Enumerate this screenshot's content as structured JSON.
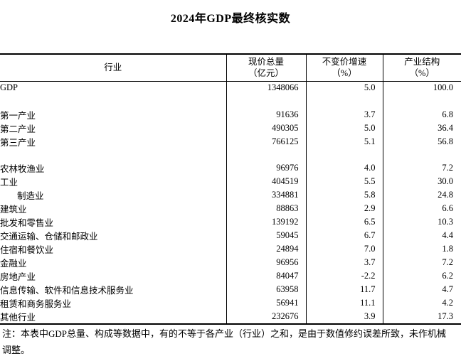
{
  "title": "2024年GDP最终核实数",
  "table": {
    "columns": [
      {
        "line1": "行业",
        "line2": ""
      },
      {
        "line1": "现价总量",
        "line2": "（亿元）"
      },
      {
        "line1": "不变价增速",
        "line2": "（%）"
      },
      {
        "line1": "产业结构",
        "line2": "（%）"
      }
    ],
    "rows": [
      {
        "label": "GDP",
        "current_price": "1348066",
        "growth": "5.0",
        "share": "100.0"
      },
      {
        "label": "",
        "current_price": "",
        "growth": "",
        "share": ""
      },
      {
        "label": "第一产业",
        "current_price": "91636",
        "growth": "3.7",
        "share": "6.8"
      },
      {
        "label": "第二产业",
        "current_price": "490305",
        "growth": "5.0",
        "share": "36.4"
      },
      {
        "label": "第三产业",
        "current_price": "766125",
        "growth": "5.1",
        "share": "56.8"
      },
      {
        "label": "",
        "current_price": "",
        "growth": "",
        "share": ""
      },
      {
        "label": "农林牧渔业",
        "current_price": "96976",
        "growth": "4.0",
        "share": "7.2"
      },
      {
        "label": "工业",
        "current_price": "404519",
        "growth": "5.5",
        "share": "30.0"
      },
      {
        "label": "制造业",
        "current_price": "334881",
        "growth": "5.8",
        "share": "24.8"
      },
      {
        "label": "建筑业",
        "current_price": "88863",
        "growth": "2.9",
        "share": "6.6"
      },
      {
        "label": "批发和零售业",
        "current_price": "139192",
        "growth": "6.5",
        "share": "10.3"
      },
      {
        "label": "交通运输、仓储和邮政业",
        "current_price": "59045",
        "growth": "6.7",
        "share": "4.4"
      },
      {
        "label": "住宿和餐饮业",
        "current_price": "24894",
        "growth": "7.0",
        "share": "1.8"
      },
      {
        "label": "金融业",
        "current_price": "96956",
        "growth": "3.7",
        "share": "7.2"
      },
      {
        "label": "房地产业",
        "current_price": "84047",
        "growth": "-2.2",
        "share": "6.2"
      },
      {
        "label": "信息传输、软件和信息技术服务业",
        "current_price": "63958",
        "growth": "11.7",
        "share": "4.7"
      },
      {
        "label": "租赁和商务服务业",
        "current_price": "56941",
        "growth": "11.1",
        "share": "4.2"
      },
      {
        "label": "其他行业",
        "current_price": "232676",
        "growth": "3.9",
        "share": "17.3"
      }
    ]
  },
  "note_lines": {
    "line1": "注：本表中GDP总量、构成等数据中，有的不等于各产业（行业）之和，是由于数值修约误差所致，未作机械",
    "line2": "调整。"
  }
}
